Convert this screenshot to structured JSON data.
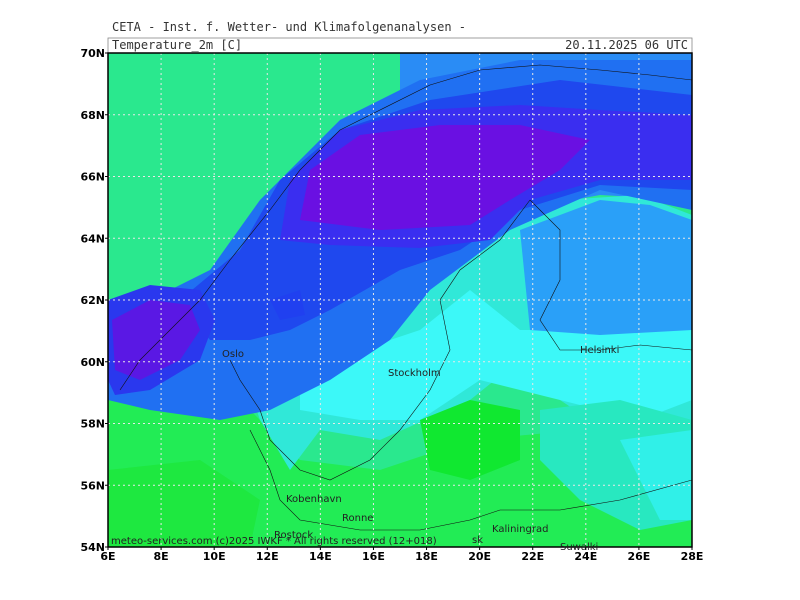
{
  "header": "CETA - Inst. f. Wetter- und Klimafolgenanalysen -",
  "title": "Temperature_2m [C]",
  "timestamp": "20.11.2025 06 UTC",
  "lat_labels": [
    "70N",
    "68N",
    "66N",
    "64N",
    "62N",
    "60N",
    "58N",
    "56N",
    "54N"
  ],
  "lon_labels": [
    "6E",
    "8E",
    "10E",
    "12E",
    "14E",
    "16E",
    "18E",
    "20E",
    "22E",
    "24E",
    "26E",
    "28E"
  ],
  "cities": [
    "Oslo",
    "Stockholm",
    "Helsinki",
    "Kobenhavn",
    "Ronne",
    "Rostock",
    "Kaliningrad",
    "Suwalki",
    "sk"
  ],
  "credit": "meteo-services.com (c)2025 IWKF * All rights reserved (12+018)"
}
